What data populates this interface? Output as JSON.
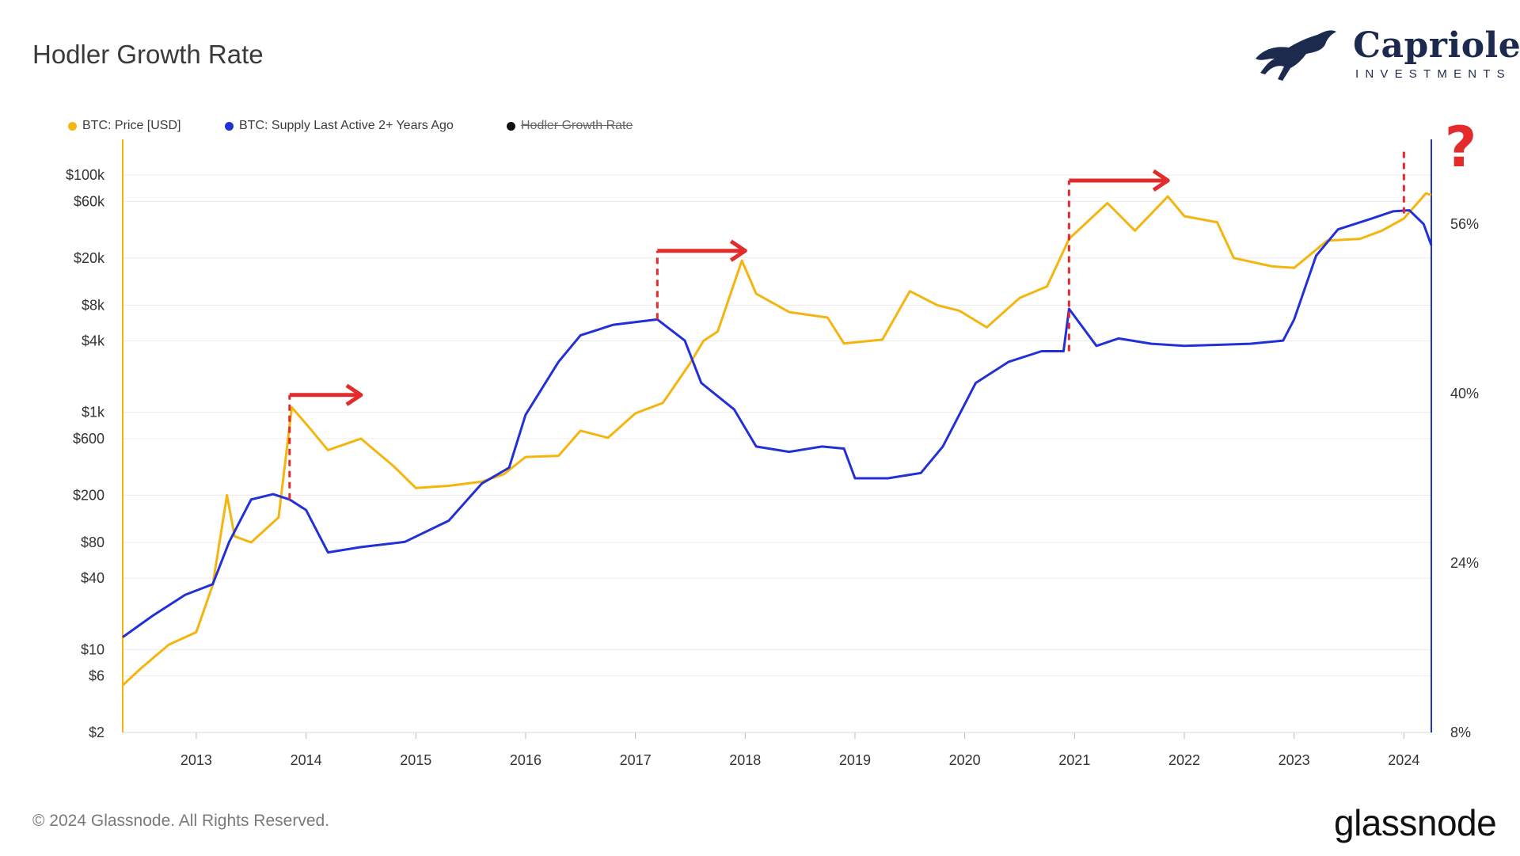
{
  "header": {
    "title": "Hodler Growth Rate"
  },
  "brand": {
    "name": "Capriole",
    "sub": "INVESTMENTS"
  },
  "legend": [
    {
      "label": "BTC: Price [USD]",
      "color": "#f5b50f",
      "active": true
    },
    {
      "label": "BTC: Supply Last Active 2+ Years Ago",
      "color": "#2230d6",
      "active": true
    },
    {
      "label": "Hodler Growth Rate",
      "color": "#111111",
      "active": false
    }
  ],
  "footer": {
    "copyright": "© 2024 Glassnode. All Rights Reserved.",
    "logo_text": "glassnode"
  },
  "annotation": {
    "question_mark": "?",
    "color": "#e32b2b"
  },
  "chart_data": {
    "type": "line",
    "title": "Hodler Growth Rate",
    "x_ticks": [
      "2013",
      "2014",
      "2015",
      "2016",
      "2017",
      "2018",
      "2019",
      "2020",
      "2021",
      "2022",
      "2023",
      "2024"
    ],
    "x_range": [
      2012.33,
      2024.25
    ],
    "y_left": {
      "scale": "log",
      "ticks": [
        "$2",
        "$6",
        "$10",
        "$40",
        "$80",
        "$200",
        "$600",
        "$1k",
        "$4k",
        "$8k",
        "$20k",
        "$60k",
        "$100k"
      ],
      "tick_values": [
        2,
        6,
        10,
        40,
        80,
        200,
        600,
        1000,
        4000,
        8000,
        20000,
        60000,
        100000
      ],
      "range": [
        2,
        200000
      ]
    },
    "y_right": {
      "scale": "linear",
      "ticks": [
        "8%",
        "24%",
        "40%",
        "56%"
      ],
      "tick_values": [
        8,
        24,
        40,
        56
      ],
      "range": [
        8,
        64
      ]
    },
    "series": [
      {
        "name": "BTC: Price [USD]",
        "axis": "left",
        "color": "#f5b50f",
        "points": [
          [
            2012.33,
            5
          ],
          [
            2012.5,
            7
          ],
          [
            2012.75,
            11
          ],
          [
            2013.0,
            14
          ],
          [
            2013.15,
            35
          ],
          [
            2013.28,
            200
          ],
          [
            2013.35,
            90
          ],
          [
            2013.5,
            80
          ],
          [
            2013.75,
            130
          ],
          [
            2013.87,
            1100
          ],
          [
            2014.0,
            800
          ],
          [
            2014.2,
            480
          ],
          [
            2014.5,
            600
          ],
          [
            2014.8,
            350
          ],
          [
            2015.0,
            230
          ],
          [
            2015.3,
            240
          ],
          [
            2015.6,
            260
          ],
          [
            2015.8,
            300
          ],
          [
            2016.0,
            420
          ],
          [
            2016.3,
            430
          ],
          [
            2016.5,
            700
          ],
          [
            2016.75,
            610
          ],
          [
            2017.0,
            980
          ],
          [
            2017.25,
            1200
          ],
          [
            2017.5,
            2600
          ],
          [
            2017.62,
            4000
          ],
          [
            2017.75,
            4800
          ],
          [
            2017.97,
            19000
          ],
          [
            2018.1,
            10000
          ],
          [
            2018.4,
            7000
          ],
          [
            2018.75,
            6300
          ],
          [
            2018.9,
            3800
          ],
          [
            2019.25,
            4100
          ],
          [
            2019.5,
            10500
          ],
          [
            2019.75,
            8000
          ],
          [
            2019.95,
            7200
          ],
          [
            2020.2,
            5200
          ],
          [
            2020.5,
            9200
          ],
          [
            2020.75,
            11500
          ],
          [
            2020.95,
            29000
          ],
          [
            2021.3,
            58000
          ],
          [
            2021.55,
            34000
          ],
          [
            2021.85,
            66000
          ],
          [
            2022.0,
            45000
          ],
          [
            2022.3,
            40000
          ],
          [
            2022.45,
            20000
          ],
          [
            2022.8,
            17000
          ],
          [
            2023.0,
            16500
          ],
          [
            2023.3,
            28000
          ],
          [
            2023.6,
            29000
          ],
          [
            2023.8,
            34000
          ],
          [
            2024.0,
            43000
          ],
          [
            2024.2,
            70000
          ],
          [
            2024.25,
            68000
          ]
        ]
      },
      {
        "name": "BTC: Supply Last Active 2+ Years Ago",
        "axis": "right",
        "color": "#2230d6",
        "points": [
          [
            2012.33,
            17
          ],
          [
            2012.6,
            19
          ],
          [
            2012.9,
            21
          ],
          [
            2013.15,
            22
          ],
          [
            2013.3,
            26
          ],
          [
            2013.5,
            30
          ],
          [
            2013.7,
            30.5
          ],
          [
            2013.85,
            30
          ],
          [
            2014.0,
            29
          ],
          [
            2014.2,
            25
          ],
          [
            2014.5,
            25.5
          ],
          [
            2014.9,
            26
          ],
          [
            2015.3,
            28
          ],
          [
            2015.6,
            31.5
          ],
          [
            2015.85,
            33
          ],
          [
            2016.0,
            38
          ],
          [
            2016.3,
            43
          ],
          [
            2016.5,
            45.5
          ],
          [
            2016.8,
            46.5
          ],
          [
            2017.2,
            47
          ],
          [
            2017.45,
            45
          ],
          [
            2017.6,
            41
          ],
          [
            2017.9,
            38.5
          ],
          [
            2018.1,
            35
          ],
          [
            2018.4,
            34.5
          ],
          [
            2018.7,
            35
          ],
          [
            2018.9,
            34.8
          ],
          [
            2019.0,
            32
          ],
          [
            2019.3,
            32
          ],
          [
            2019.6,
            32.5
          ],
          [
            2019.8,
            35
          ],
          [
            2019.95,
            38
          ],
          [
            2020.1,
            41
          ],
          [
            2020.4,
            43
          ],
          [
            2020.7,
            44
          ],
          [
            2020.9,
            44
          ],
          [
            2020.95,
            48
          ],
          [
            2021.2,
            44.5
          ],
          [
            2021.4,
            45.2
          ],
          [
            2021.7,
            44.7
          ],
          [
            2022.0,
            44.5
          ],
          [
            2022.3,
            44.6
          ],
          [
            2022.6,
            44.7
          ],
          [
            2022.9,
            45
          ],
          [
            2023.0,
            47
          ],
          [
            2023.2,
            53
          ],
          [
            2023.4,
            55.5
          ],
          [
            2023.7,
            56.5
          ],
          [
            2023.9,
            57.2
          ],
          [
            2024.05,
            57.3
          ],
          [
            2024.18,
            56
          ],
          [
            2024.25,
            54
          ]
        ]
      }
    ],
    "annotations": [
      {
        "type": "dashed-vline",
        "x": 2013.85,
        "from_value_pct": 30,
        "to_value_usd": 1400,
        "color": "#e32b2b"
      },
      {
        "type": "arrow-right",
        "x_from": 2013.85,
        "x_to": 2014.5,
        "value_usd": 1400,
        "color": "#e32b2b"
      },
      {
        "type": "dashed-vline",
        "x": 2017.2,
        "from_value_pct": 47,
        "to_value_usd": 23000,
        "color": "#e32b2b"
      },
      {
        "type": "arrow-right",
        "x_from": 2017.2,
        "x_to": 2018.0,
        "value_usd": 23000,
        "color": "#e32b2b"
      },
      {
        "type": "dashed-vline",
        "x": 2020.95,
        "from_value_pct": 44,
        "to_value_usd": 90000,
        "color": "#e32b2b"
      },
      {
        "type": "arrow-right",
        "x_from": 2020.95,
        "x_to": 2021.85,
        "value_usd": 90000,
        "color": "#e32b2b"
      },
      {
        "type": "dashed-vline",
        "x": 2024.0,
        "from_value_pct": 57,
        "to_value_usd": 170000,
        "color": "#e32b2b"
      }
    ]
  }
}
